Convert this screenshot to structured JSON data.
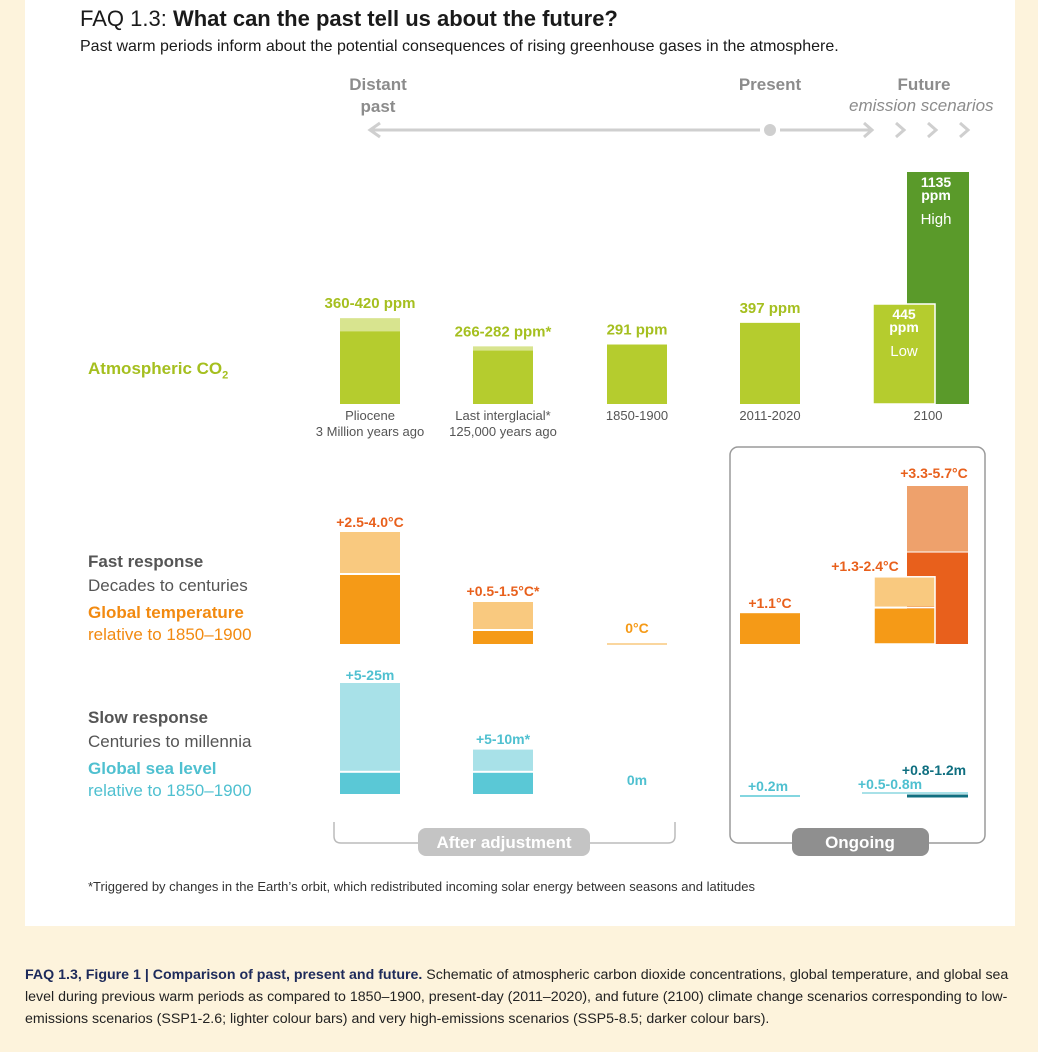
{
  "header": {
    "faq": "FAQ 1.3:",
    "title": "What can the past tell us about the future?",
    "subtitle": "Past warm periods inform about the potential consequences of rising greenhouse gases in the atmosphere."
  },
  "timeline": {
    "distant_1": "Distant",
    "distant_2": "past",
    "present": "Present",
    "future": "Future",
    "future_sub": "emission scenarios"
  },
  "rows": {
    "co2": "Atmospheric CO",
    "co2_sub": "2",
    "fast": "Fast response",
    "fast_sub": "Decades to centuries",
    "temp": "Global temperature",
    "temp_sub": "relative to 1850–1900",
    "slow": "Slow response",
    "slow_sub": "Centuries to millennia",
    "sea": "Global sea level",
    "sea_sub": "relative to 1850–1900"
  },
  "brackets": {
    "after": "After adjustment",
    "ongoing": "Ongoing"
  },
  "footnote": "*Triggered by changes in the Earth’s orbit, which redistributed incoming solar energy between seasons and latitudes",
  "caption": {
    "label": "FAQ 1.3, Figure 1 | Comparison of past, present and future.",
    "text": " Schematic of atmospheric carbon dioxide concentrations, global temperature, and global sea level during previous warm periods as compared to 1850–1900, present-day (2011–2020), and future (2100) climate change scenarios corresponding to low-emissions scenarios (SSP1-2.6; lighter colour bars) and very high-emissions scenarios (SSP5-8.5; darker colour bars)."
  },
  "colors": {
    "co2": "#b5cc2e",
    "co2_light": "#d8e48f",
    "co2_dark": "#5a9a2a",
    "temp": "#f59a17",
    "temp_light": "#f9c97f",
    "temp_dark": "#e8601c",
    "temp_high_light": "#eea16c",
    "sea": "#5ac8d6",
    "sea_light": "#a8e1e8",
    "sea_dark": "#0f6f80",
    "label_co2": "#a5bf1f",
    "label_temp": "#f28a10",
    "label_sea": "#4fc0d0",
    "grey": "#8c8c8c"
  },
  "chart_data": [
    {
      "type": "bar",
      "title": "Atmospheric CO2",
      "unit": "ppm",
      "categories": [
        "Pliocene\n3 Million years ago",
        "Last interglacial*\n125,000 years ago",
        "1850-1900",
        "2011-2020",
        "2100"
      ],
      "category_labels": [
        [
          "Pliocene",
          "3 Million years ago"
        ],
        [
          "Last interglacial*",
          "125,000 years ago"
        ],
        [
          "1850-1900"
        ],
        [
          "2011-2020"
        ],
        [
          "2100"
        ]
      ],
      "labels": [
        "360-420 ppm",
        "266-282 ppm*",
        "291 ppm",
        "397 ppm"
      ],
      "values": [
        [
          360,
          420
        ],
        [
          266,
          282
        ],
        [
          291,
          291
        ],
        [
          397,
          397
        ]
      ],
      "scenarios": [
        {
          "name": "Low",
          "value": 445,
          "label": [
            "445",
            "ppm"
          ]
        },
        {
          "name": "High",
          "value": 1135,
          "label": [
            "1135",
            "ppm"
          ]
        }
      ]
    },
    {
      "type": "bar",
      "title": "Global temperature",
      "unit": "°C",
      "labels": [
        "+2.5-4.0°C",
        "+0.5-1.5°C*",
        "0°C",
        "+1.1°C",
        "+1.3-2.4°C",
        "+3.3-5.7°C"
      ],
      "values": [
        [
          2.5,
          4.0
        ],
        [
          0.5,
          1.5
        ],
        [
          0,
          0
        ],
        [
          1.1,
          1.1
        ]
      ],
      "scenarios": [
        {
          "name": "Low",
          "value": [
            1.3,
            2.4
          ]
        },
        {
          "name": "High",
          "value": [
            3.3,
            5.7
          ]
        }
      ]
    },
    {
      "type": "bar",
      "title": "Global sea level",
      "unit": "m",
      "labels": [
        "+5-25m",
        "+5-10m*",
        "0m",
        "+0.2m",
        "+0.5-0.8m",
        "+0.8-1.2m"
      ],
      "values": [
        [
          5,
          25
        ],
        [
          5,
          10
        ],
        [
          0,
          0
        ],
        [
          0.2,
          0.2
        ]
      ],
      "scenarios": [
        {
          "name": "Low",
          "value": [
            0.5,
            0.8
          ]
        },
        {
          "name": "High",
          "value": [
            0.8,
            1.2
          ]
        }
      ]
    }
  ]
}
